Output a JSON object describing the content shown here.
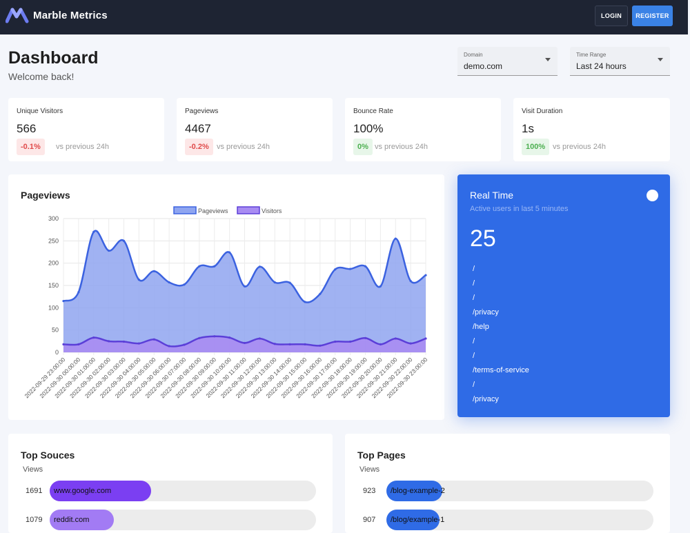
{
  "app": {
    "name": "Marble Metrics",
    "login_label": "LOGIN",
    "register_label": "REGISTER"
  },
  "page": {
    "title": "Dashboard",
    "subtitle": "Welcome back!"
  },
  "filters": {
    "domain": {
      "label": "Domain",
      "value": "demo.com"
    },
    "time_range": {
      "label": "Time Range",
      "value": "Last 24 hours"
    }
  },
  "stats": [
    {
      "label": "Unique Visitors",
      "value": "566",
      "change": "-0.1%",
      "change_dir": "negative",
      "compare": "vs previous 24h"
    },
    {
      "label": "Pageviews",
      "value": "4467",
      "change": "-0.2%",
      "change_dir": "negative",
      "compare": "vs previous 24h"
    },
    {
      "label": "Bounce Rate",
      "value": "100%",
      "change": "0%",
      "change_dir": "positive",
      "compare": "vs previous 24h"
    },
    {
      "label": "Visit Duration",
      "value": "1s",
      "change": "100%",
      "change_dir": "positive",
      "compare": "vs previous 24h"
    }
  ],
  "pageviews_card": {
    "title": "Pageviews"
  },
  "chart_data": {
    "type": "area",
    "title": "Pageviews",
    "x": [
      "2022-09-29 23:00:00",
      "2022-09-30 00:00:00",
      "2022-09-30 01:00:00",
      "2022-09-30 02:00:00",
      "2022-09-30 03:00:00",
      "2022-09-30 04:00:00",
      "2022-09-30 05:00:00",
      "2022-09-30 06:00:00",
      "2022-09-30 07:00:00",
      "2022-09-30 08:00:00",
      "2022-09-30 09:00:00",
      "2022-09-30 10:00:00",
      "2022-09-30 11:00:00",
      "2022-09-30 12:00:00",
      "2022-09-30 13:00:00",
      "2022-09-30 14:00:00",
      "2022-09-30 15:00:00",
      "2022-09-30 16:00:00",
      "2022-09-30 17:00:00",
      "2022-09-30 18:00:00",
      "2022-09-30 19:00:00",
      "2022-09-30 20:00:00",
      "2022-09-30 21:00:00",
      "2022-09-30 22:00:00",
      "2022-09-30 23:00:00"
    ],
    "series": [
      {
        "name": "Pageviews",
        "color": "#3b62e0",
        "fill": "#8fa5f0",
        "values": [
          115,
          135,
          270,
          228,
          250,
          163,
          182,
          157,
          152,
          193,
          193,
          224,
          148,
          192,
          157,
          156,
          113,
          131,
          186,
          187,
          193,
          148,
          255,
          160,
          173
        ]
      },
      {
        "name": "Visitors",
        "color": "#5b3fd8",
        "fill": "#a88cf2",
        "values": [
          18,
          18,
          33,
          25,
          24,
          20,
          29,
          14,
          17,
          32,
          36,
          33,
          21,
          31,
          19,
          18,
          18,
          15,
          24,
          24,
          32,
          18,
          31,
          20,
          31
        ]
      }
    ],
    "yticks": [
      0,
      50,
      100,
      150,
      200,
      250,
      300
    ],
    "ylim": [
      0,
      300
    ],
    "legend_position": "top",
    "grid": true
  },
  "realtime": {
    "title": "Real Time",
    "subtitle": "Active users in last 5 minutes",
    "count": "25",
    "paths": [
      "/",
      "/",
      "/",
      "/privacy",
      "/help",
      "/",
      "/",
      "/terms-of-service",
      "/",
      "/privacy"
    ]
  },
  "top_sources": {
    "title": "Top Souces",
    "column_label": "Views",
    "items": [
      {
        "count": "1691",
        "label": "www.google.com",
        "fraction": 0.38,
        "color": "#7b3ff2"
      },
      {
        "count": "1079",
        "label": "reddit.com",
        "fraction": 0.24,
        "color": "#a27bf4"
      }
    ]
  },
  "top_pages": {
    "title": "Top Pages",
    "column_label": "Views",
    "items": [
      {
        "count": "923",
        "label": "/blog-example-2",
        "fraction": 0.21,
        "color": "#2f6be6"
      },
      {
        "count": "907",
        "label": "/blog/example-1",
        "fraction": 0.2,
        "color": "#2f6be6"
      }
    ]
  }
}
